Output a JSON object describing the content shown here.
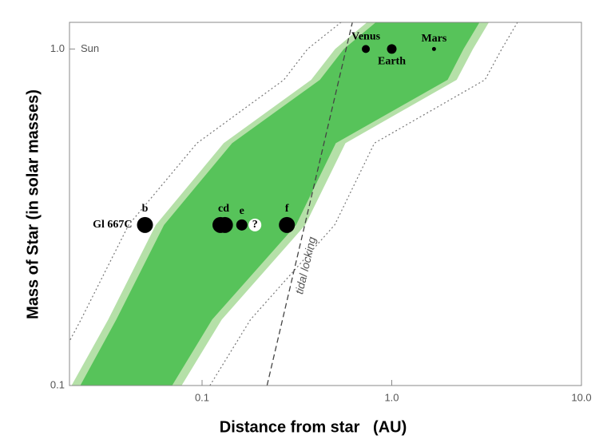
{
  "chart_data": {
    "type": "scatter",
    "xlabel": "Distance from star   (AU)",
    "ylabel": "Mass of Star (in solar masses)",
    "log_x": true,
    "log_y": true,
    "xlim": [
      0.02,
      10
    ],
    "ylim": [
      0.1,
      1.2
    ],
    "xticks": [
      0.1,
      {
        "value": 1,
        "label": "1.0"
      },
      {
        "value": 10,
        "label": "10.0"
      }
    ],
    "yticks": [
      0.1,
      {
        "value": 1,
        "label": "1.0"
      }
    ],
    "reference_label": "Sun",
    "zones": {
      "masses": [
        0.1,
        0.157,
        0.3,
        0.525,
        0.81,
        1.0,
        1.2
      ],
      "bands": [
        {
          "color": "#b5e0a8",
          "inner": [
            0.0205,
            0.032,
            0.057,
            0.13,
            0.376,
            0.503,
            0.74
          ],
          "outer": [
            0.078,
            0.127,
            0.35,
            0.57,
            2.2,
            2.68,
            3.25
          ]
        },
        {
          "color": "#57c35a",
          "inner": [
            0.0228,
            0.0353,
            0.063,
            0.144,
            0.418,
            0.559,
            0.824
          ],
          "outer": [
            0.0695,
            0.113,
            0.313,
            0.507,
            1.97,
            2.39,
            2.9
          ]
        }
      ],
      "limits": [
        [
          0.015,
          0.023,
          0.041,
          0.094,
          0.27,
          0.36,
          0.54
        ],
        [
          0.11,
          0.18,
          0.5,
          0.81,
          3.1,
          3.8,
          4.6
        ]
      ]
    },
    "tidal_locking": {
      "label": "tidal locking",
      "x": [
        0.22,
        0.62
      ],
      "y": [
        0.1,
        1.2
      ]
    },
    "system_label": "Gl 667C",
    "points": {
      "x": [
        0.05,
        0.125,
        0.132,
        0.162,
        0.19,
        0.28,
        0.73,
        1.0,
        1.67
      ],
      "y": [
        0.3,
        0.3,
        0.3,
        0.3,
        0.3,
        0.3,
        1.0,
        1.0,
        1.0
      ],
      "size": [
        10,
        10,
        10,
        7,
        8,
        10,
        5,
        6,
        2.5
      ],
      "color": [
        "#000",
        "#000",
        "#000",
        "#000",
        "#fff",
        "#000",
        "#000",
        "#000",
        "#000"
      ],
      "labels": [
        "b",
        "cd",
        null,
        "e",
        "?",
        "f",
        "Venus",
        "Earth",
        "Mars"
      ],
      "label_pos": [
        "above",
        "above",
        null,
        "above",
        "center",
        "above",
        "above",
        "below",
        "above"
      ]
    }
  }
}
